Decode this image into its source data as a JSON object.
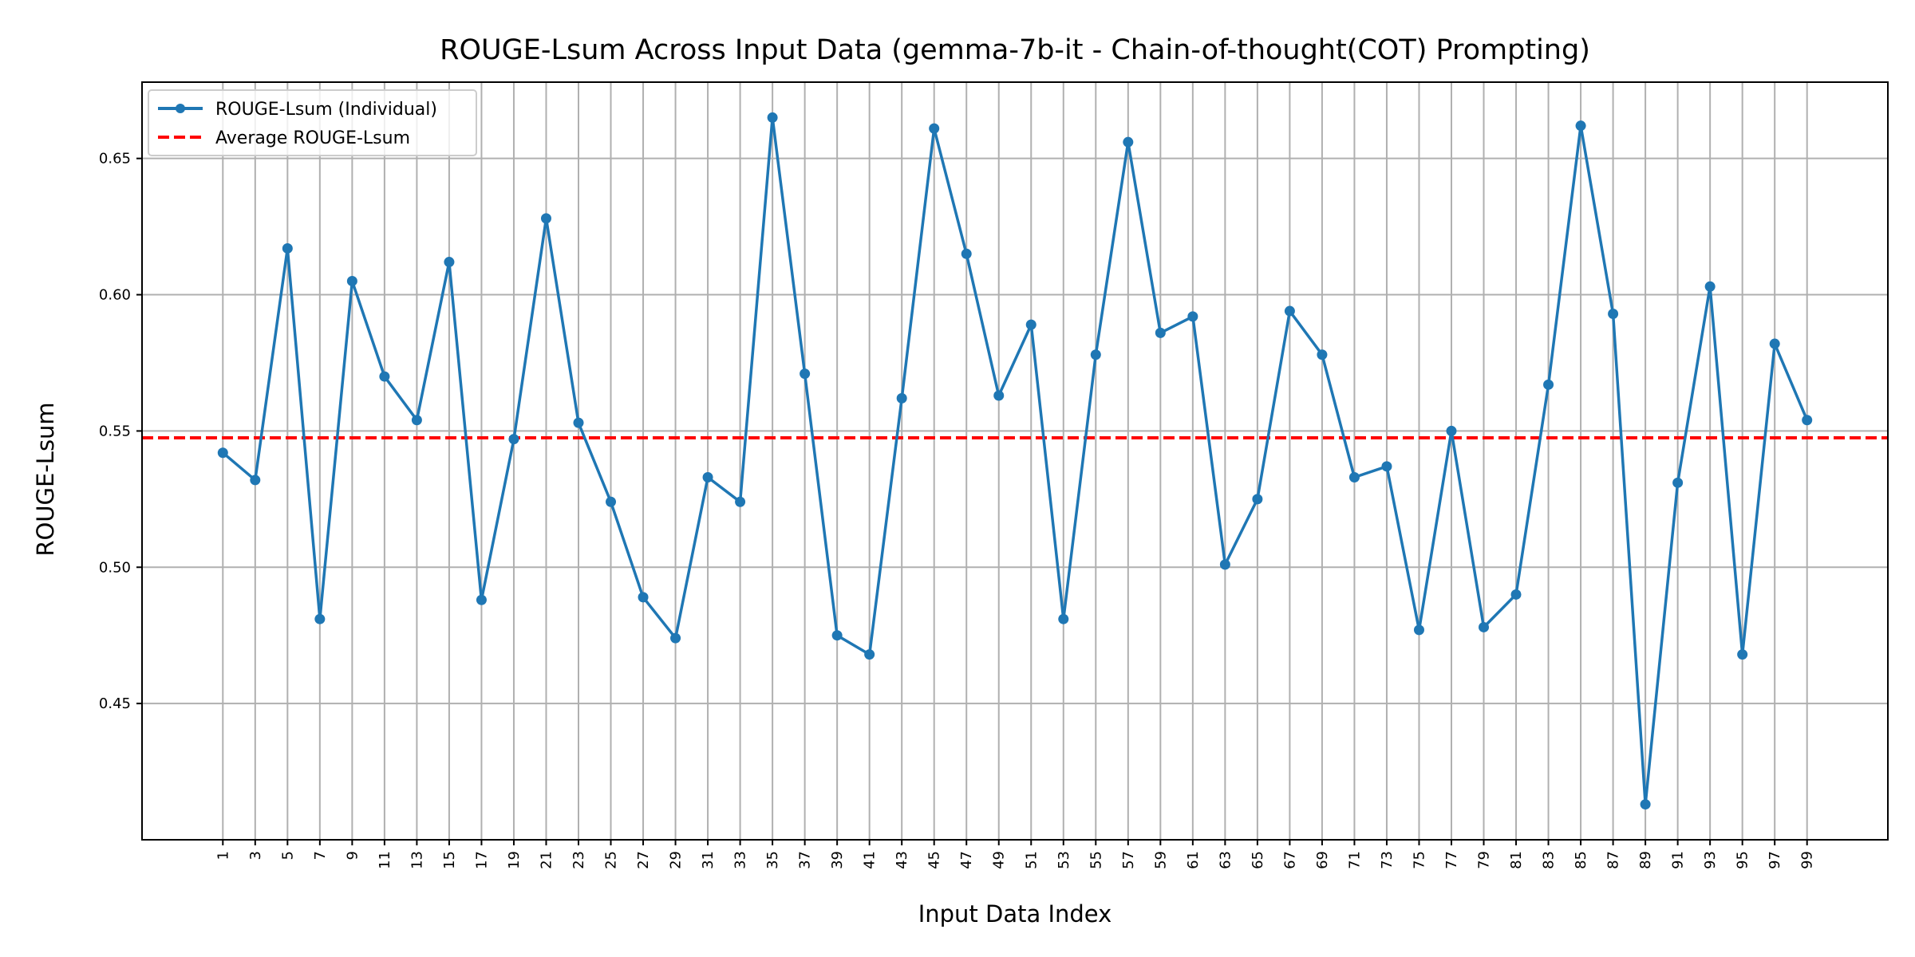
{
  "chart_data": {
    "type": "line",
    "title": "ROUGE-Lsum Across Input Data (gemma-7b-it - Chain-of-thought(COT) Prompting)",
    "xlabel": "Input Data Index",
    "ylabel": "ROUGE-Lsum",
    "xlim": [
      -4,
      104
    ],
    "ylim": [
      0.4,
      0.678
    ],
    "xticks": [
      1,
      3,
      5,
      7,
      9,
      11,
      13,
      15,
      17,
      19,
      21,
      23,
      25,
      27,
      29,
      31,
      33,
      35,
      37,
      39,
      41,
      43,
      45,
      47,
      49,
      51,
      53,
      55,
      57,
      59,
      61,
      63,
      65,
      67,
      69,
      71,
      73,
      75,
      77,
      79,
      81,
      83,
      85,
      87,
      89,
      91,
      93,
      95,
      97,
      99
    ],
    "yticks": [
      0.45,
      0.5,
      0.55,
      0.6,
      0.65
    ],
    "ytick_labels": [
      "0.45",
      "0.50",
      "0.55",
      "0.60",
      "0.65"
    ],
    "grid": true,
    "legend": "top-left",
    "colors": {
      "series": "#1f77b4",
      "average": "#ff0000",
      "grid": "#b0b0b0"
    },
    "series": [
      {
        "name": "ROUGE-Lsum (Individual)",
        "x": [
          1,
          3,
          5,
          7,
          9,
          11,
          13,
          15,
          17,
          19,
          21,
          23,
          25,
          27,
          29,
          31,
          33,
          35,
          37,
          39,
          41,
          43,
          45,
          47,
          49,
          51,
          53,
          55,
          57,
          59,
          61,
          63,
          65,
          67,
          69,
          71,
          73,
          75,
          77,
          79,
          81,
          83,
          85,
          87,
          89,
          91,
          93,
          95,
          97,
          99
        ],
        "values": [
          0.542,
          0.532,
          0.617,
          0.481,
          0.605,
          0.57,
          0.554,
          0.612,
          0.488,
          0.547,
          0.628,
          0.553,
          0.524,
          0.489,
          0.474,
          0.533,
          0.524,
          0.665,
          0.571,
          0.475,
          0.468,
          0.562,
          0.661,
          0.615,
          0.563,
          0.589,
          0.481,
          0.578,
          0.656,
          0.586,
          0.592,
          0.501,
          0.525,
          0.594,
          0.578,
          0.533,
          0.537,
          0.477,
          0.55,
          0.478,
          0.49,
          0.567,
          0.662,
          0.593,
          0.413,
          0.531,
          0.603,
          0.468,
          0.582,
          0.554
        ]
      },
      {
        "name": "Average ROUGE-Lsum",
        "value": 0.5475
      }
    ]
  }
}
